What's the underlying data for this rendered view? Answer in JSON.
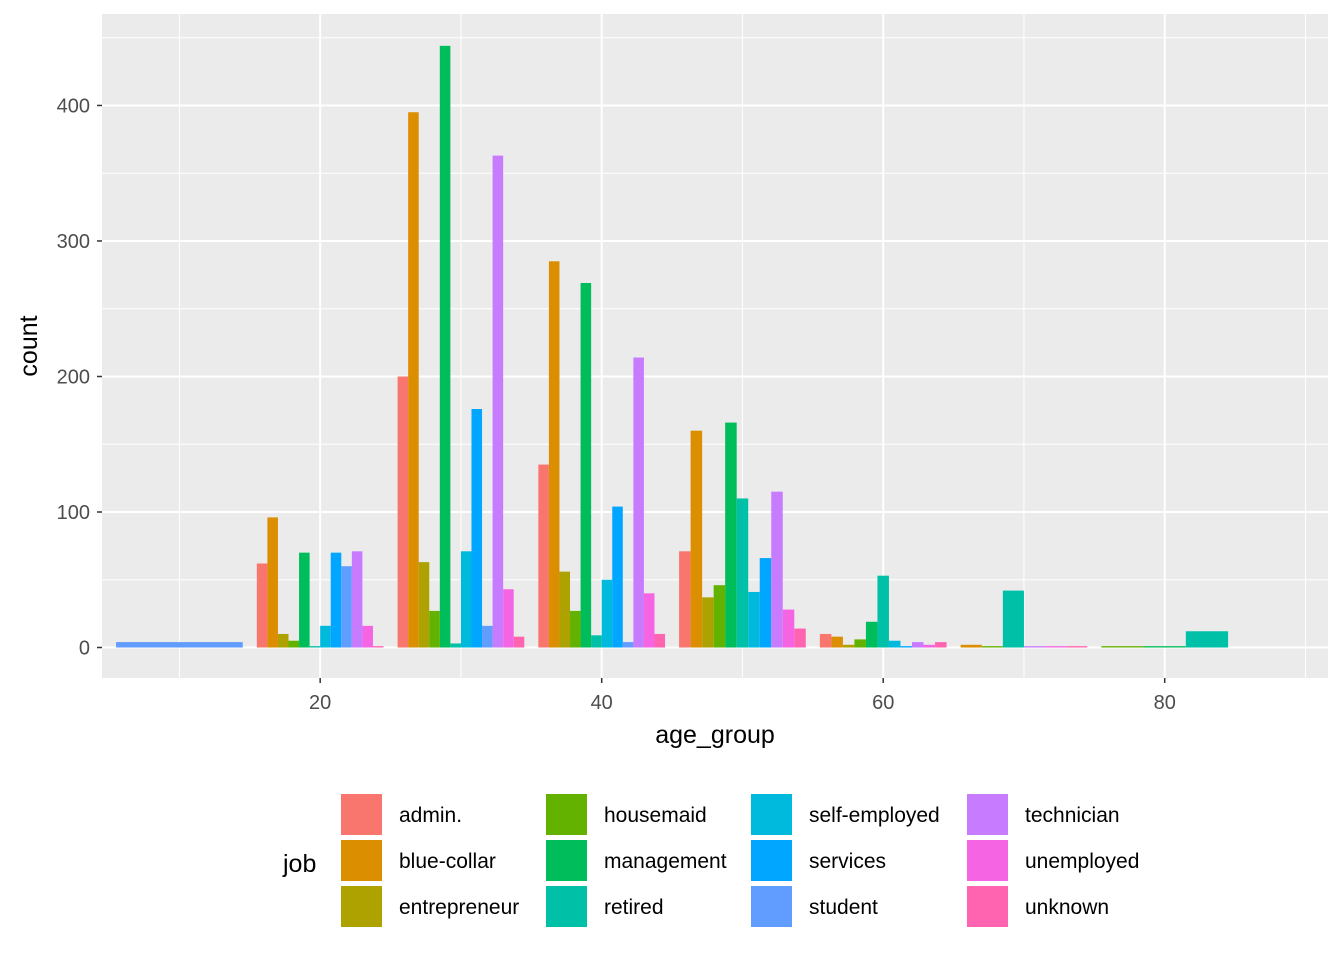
{
  "chart_data": {
    "type": "bar",
    "xlabel": "age_group",
    "ylabel": "count",
    "xlim": [
      4.5,
      91.6
    ],
    "ylim": [
      -22.5,
      467.5
    ],
    "x_ticks": [
      20,
      40,
      60,
      80
    ],
    "y_ticks": [
      0,
      100,
      200,
      300,
      400
    ],
    "grid": true,
    "bin_width": 10,
    "bin_centers": [
      10,
      20,
      30,
      40,
      50,
      60,
      70,
      80
    ],
    "legend": {
      "title": "job",
      "position": "bottom"
    },
    "series": [
      {
        "name": "admin.",
        "color": "#F8766D",
        "values": [
          0,
          62,
          200,
          135,
          71,
          10,
          0,
          0
        ]
      },
      {
        "name": "blue-collar",
        "color": "#DB8E00",
        "values": [
          0,
          96,
          395,
          285,
          160,
          8,
          2,
          0
        ]
      },
      {
        "name": "entrepreneur",
        "color": "#AEA200",
        "values": [
          0,
          10,
          63,
          56,
          37,
          2,
          0,
          0
        ]
      },
      {
        "name": "housemaid",
        "color": "#64B200",
        "values": [
          0,
          5,
          27,
          27,
          46,
          6,
          1,
          1
        ]
      },
      {
        "name": "management",
        "color": "#00BD5C",
        "values": [
          0,
          70,
          444,
          269,
          166,
          19,
          0,
          1
        ]
      },
      {
        "name": "retired",
        "color": "#00C1A7",
        "values": [
          0,
          1,
          3,
          9,
          110,
          53,
          42,
          12
        ]
      },
      {
        "name": "self-employed",
        "color": "#00BADE",
        "values": [
          0,
          16,
          71,
          50,
          41,
          5,
          0,
          0
        ]
      },
      {
        "name": "services",
        "color": "#00A6FF",
        "values": [
          0,
          70,
          176,
          104,
          66,
          1,
          0,
          0
        ]
      },
      {
        "name": "student",
        "color": "#619CFF",
        "values": [
          4,
          60,
          16,
          4,
          0,
          0,
          0,
          0
        ]
      },
      {
        "name": "technician",
        "color": "#C77CFF",
        "values": [
          0,
          71,
          363,
          214,
          115,
          4,
          1,
          0
        ]
      },
      {
        "name": "unemployed",
        "color": "#F564E3",
        "values": [
          0,
          16,
          43,
          40,
          28,
          2,
          1,
          0
        ]
      },
      {
        "name": "unknown",
        "color": "#FF64B0",
        "values": [
          0,
          1,
          8,
          10,
          14,
          4,
          1,
          0
        ]
      }
    ]
  }
}
